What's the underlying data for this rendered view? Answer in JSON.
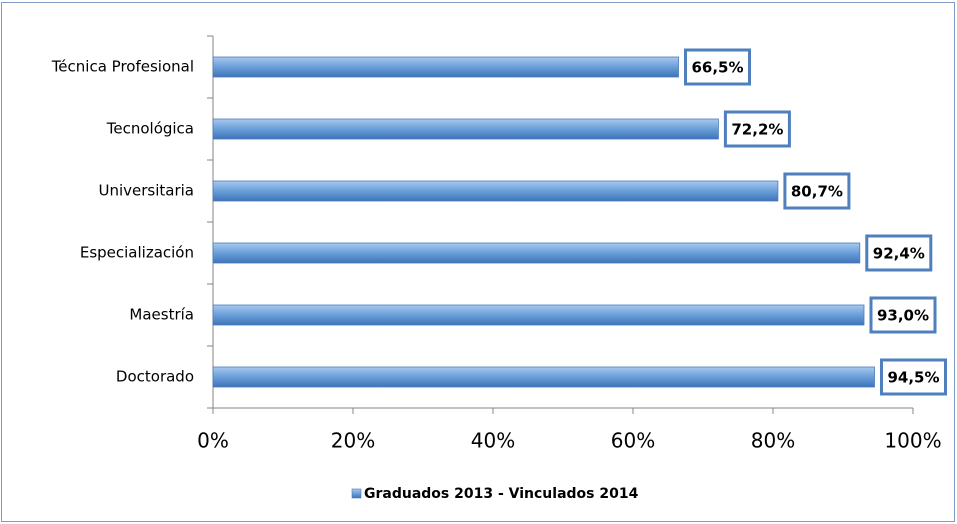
{
  "chart_data": {
    "type": "bar",
    "orientation": "horizontal",
    "categories": [
      "Técnica Profesional",
      "Tecnológica",
      "Universitaria",
      "Especialización",
      "Maestría",
      "Doctorado"
    ],
    "series": [
      {
        "name": "Graduados 2013 - Vinculados 2014",
        "color": "#6fa3dc",
        "values": [
          66.5,
          72.2,
          80.7,
          92.4,
          93.0,
          94.5
        ],
        "value_labels": [
          "66,5%",
          "72,2%",
          "80,7%",
          "92,4%",
          "93,0%",
          "94,5%"
        ]
      }
    ],
    "xlim": [
      0,
      100
    ],
    "xticks": [
      {
        "value": 0,
        "label": "0%"
      },
      {
        "value": 20,
        "label": "20%"
      },
      {
        "value": 40,
        "label": "40%"
      },
      {
        "value": 60,
        "label": "60%"
      },
      {
        "value": 80,
        "label": "80%"
      },
      {
        "value": 100,
        "label": "100%"
      }
    ],
    "legend": "bottom"
  }
}
